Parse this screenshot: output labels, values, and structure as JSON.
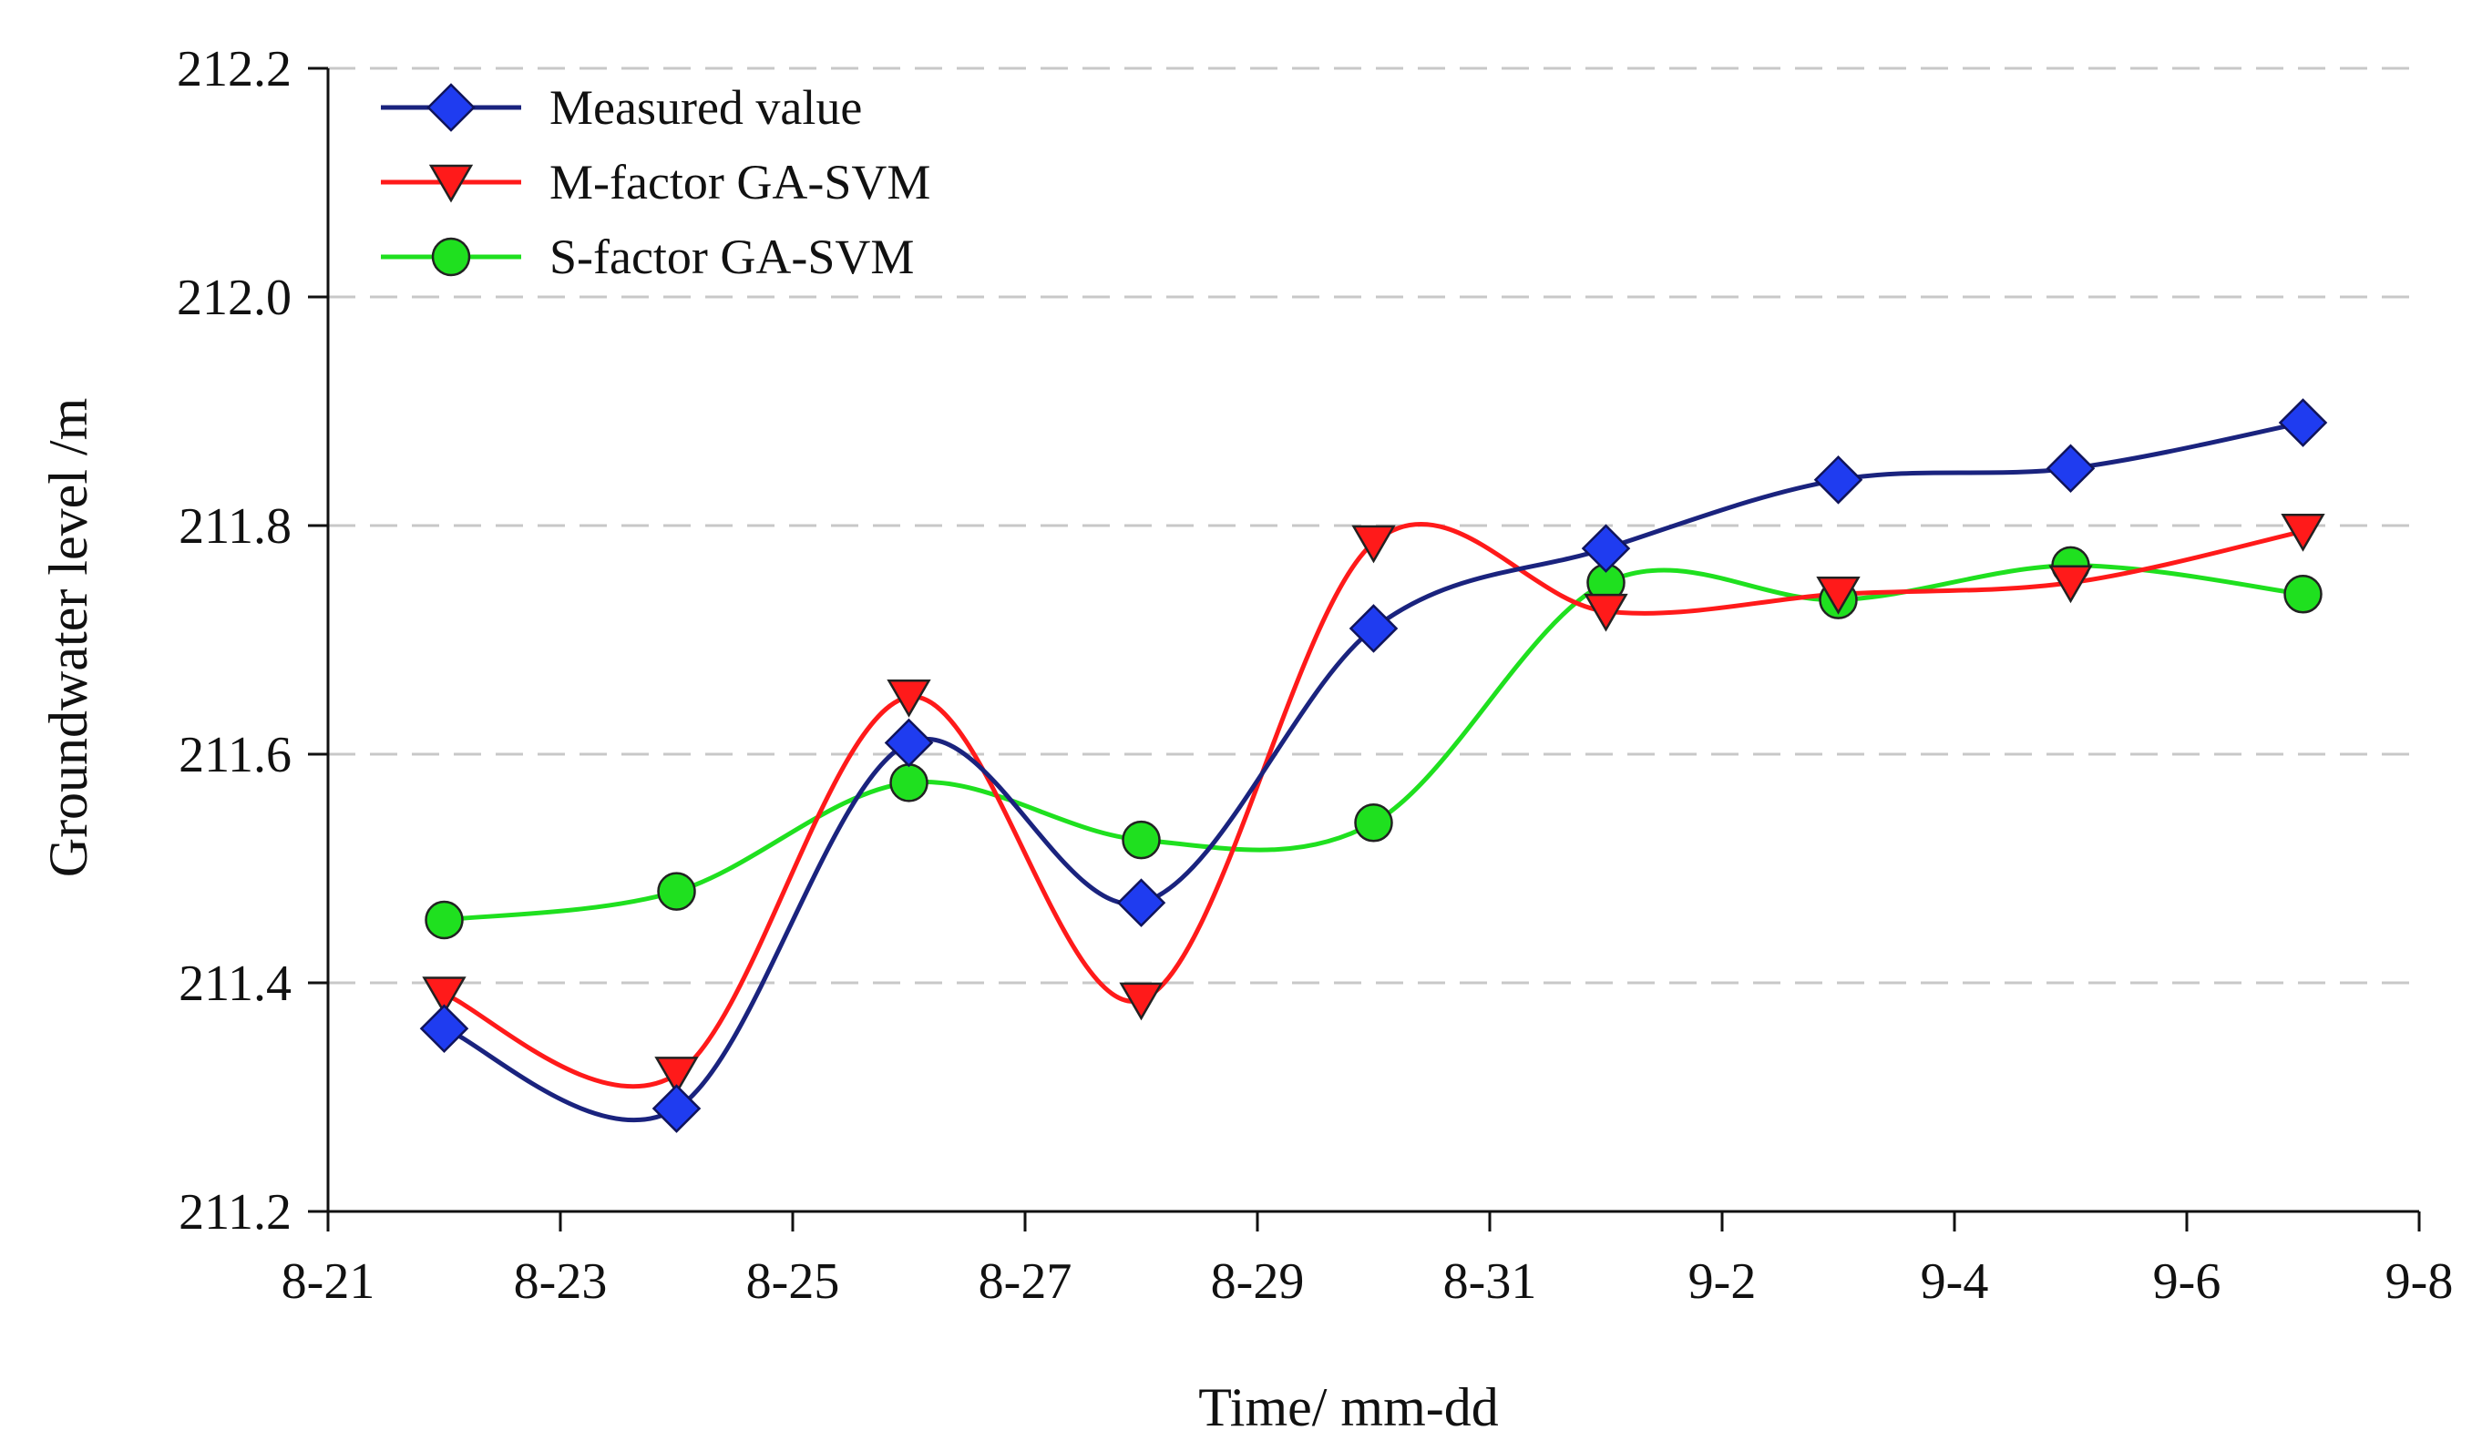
{
  "chart_data": {
    "type": "line",
    "title": "",
    "xlabel": "Time/ mm-dd",
    "ylabel": "Groundwater level /m",
    "x_day_index": [
      1,
      3,
      5,
      7,
      9,
      11,
      13,
      15,
      17
    ],
    "x_tick_labels": [
      "8-21",
      "8-23",
      "8-25",
      "8-27",
      "8-29",
      "8-31",
      "9-2",
      "9-4",
      "9-6",
      "9-8"
    ],
    "x_tick_days": [
      0,
      2,
      4,
      6,
      8,
      10,
      12,
      14,
      16,
      18
    ],
    "xlim": [
      0,
      18
    ],
    "y_tick_labels": [
      "211.2",
      "211.4",
      "211.6",
      "211.8",
      "212.0",
      "212.2"
    ],
    "y_tick_values": [
      211.2,
      211.4,
      211.6,
      211.8,
      212.0,
      212.2
    ],
    "ylim": [
      211.2,
      212.2
    ],
    "grid": "horizontal dashed",
    "legend_position": "top-left",
    "series": [
      {
        "name": "Measured value",
        "color": "#1a237e",
        "marker_color": "#1f3cf0",
        "marker": "diamond",
        "values": [
          211.36,
          211.29,
          211.61,
          211.47,
          211.71,
          211.78,
          211.84,
          211.85,
          211.89
        ]
      },
      {
        "name": "M-factor GA-SVM",
        "color": "#ff1a1a",
        "marker_color": "#ff1a1a",
        "marker": "triangle-down",
        "values": [
          211.39,
          211.32,
          211.65,
          211.385,
          211.785,
          211.725,
          211.74,
          211.75,
          211.795
        ]
      },
      {
        "name": "S-factor GA-SVM",
        "color": "#1fe01f",
        "marker_color": "#1fe01f",
        "marker": "circle",
        "values": [
          211.455,
          211.48,
          211.575,
          211.525,
          211.54,
          211.75,
          211.735,
          211.765,
          211.74
        ]
      }
    ]
  }
}
